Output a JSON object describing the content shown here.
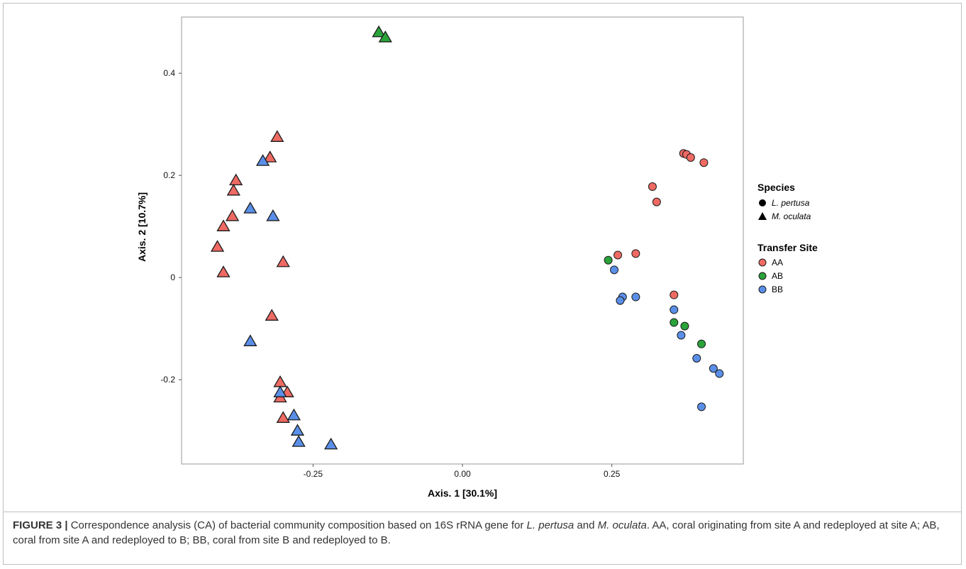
{
  "caption": {
    "label": "FIGURE 3 |",
    "part1": " Correspondence analysis (CA) of bacterial community composition based on 16S rRNA gene for ",
    "species1": "L. pertusa",
    "part2": " and ",
    "species2": "M. oculata",
    "part3": ". AA, coral originating from site A and redeployed at site A; AB, coral from site A and redeployed to B; BB, coral from site B and redeployed to B."
  },
  "chart_data": {
    "type": "scatter",
    "title": "",
    "xlabel": "Axis. 1 [30.1%]",
    "ylabel": "Axis. 2 [10.7%]",
    "xlim": [
      -0.47,
      0.47
    ],
    "ylim": [
      -0.365,
      0.51
    ],
    "x_ticks": [
      -0.25,
      0.0,
      0.25
    ],
    "x_tick_labels": [
      "-0.25",
      "0.00",
      "0.25"
    ],
    "y_ticks": [
      0.4,
      0.2,
      0.0,
      -0.2
    ],
    "y_tick_labels": [
      "0.4",
      "0.2",
      "0",
      "-0.2"
    ],
    "grid": false,
    "legend_position": "right",
    "colors": {
      "AA": "#ee6a63",
      "AB": "#2aa33a",
      "BB": "#5a8fe8"
    },
    "legend": {
      "shape_title": "Species",
      "shapes": [
        {
          "label": "L. pertusa",
          "shape": "circle"
        },
        {
          "label": "M. oculata",
          "shape": "triangle"
        }
      ],
      "color_title": "Transfer Site",
      "colors": [
        {
          "label": "AA",
          "group": "AA"
        },
        {
          "label": "AB",
          "group": "AB"
        },
        {
          "label": "BB",
          "group": "BB"
        }
      ]
    },
    "points": [
      {
        "x": 0.37,
        "y": 0.243,
        "site": "AA",
        "species": "L. pertusa"
      },
      {
        "x": 0.375,
        "y": 0.241,
        "site": "AA",
        "species": "L. pertusa"
      },
      {
        "x": 0.382,
        "y": 0.235,
        "site": "AA",
        "species": "L. pertusa"
      },
      {
        "x": 0.404,
        "y": 0.225,
        "site": "AA",
        "species": "L. pertusa"
      },
      {
        "x": 0.318,
        "y": 0.178,
        "site": "AA",
        "species": "L. pertusa"
      },
      {
        "x": 0.325,
        "y": 0.148,
        "site": "AA",
        "species": "L. pertusa"
      },
      {
        "x": 0.26,
        "y": 0.044,
        "site": "AA",
        "species": "L. pertusa"
      },
      {
        "x": 0.29,
        "y": 0.047,
        "site": "AA",
        "species": "L. pertusa"
      },
      {
        "x": 0.354,
        "y": -0.034,
        "site": "AA",
        "species": "L. pertusa"
      },
      {
        "x": 0.244,
        "y": 0.034,
        "site": "AB",
        "species": "L. pertusa"
      },
      {
        "x": 0.354,
        "y": -0.088,
        "site": "AB",
        "species": "L. pertusa"
      },
      {
        "x": 0.372,
        "y": -0.095,
        "site": "AB",
        "species": "L. pertusa"
      },
      {
        "x": 0.4,
        "y": -0.13,
        "site": "AB",
        "species": "L. pertusa"
      },
      {
        "x": 0.254,
        "y": 0.015,
        "site": "BB",
        "species": "L. pertusa"
      },
      {
        "x": 0.268,
        "y": -0.038,
        "site": "BB",
        "species": "L. pertusa"
      },
      {
        "x": 0.264,
        "y": -0.045,
        "site": "BB",
        "species": "L. pertusa"
      },
      {
        "x": 0.29,
        "y": -0.038,
        "site": "BB",
        "species": "L. pertusa"
      },
      {
        "x": 0.354,
        "y": -0.063,
        "site": "BB",
        "species": "L. pertusa"
      },
      {
        "x": 0.366,
        "y": -0.113,
        "site": "BB",
        "species": "L. pertusa"
      },
      {
        "x": 0.392,
        "y": -0.158,
        "site": "BB",
        "species": "L. pertusa"
      },
      {
        "x": 0.42,
        "y": -0.178,
        "site": "BB",
        "species": "L. pertusa"
      },
      {
        "x": 0.43,
        "y": -0.188,
        "site": "BB",
        "species": "L. pertusa"
      },
      {
        "x": 0.4,
        "y": -0.253,
        "site": "BB",
        "species": "L. pertusa"
      },
      {
        "x": -0.31,
        "y": 0.275,
        "site": "AA",
        "species": "M. oculata"
      },
      {
        "x": -0.322,
        "y": 0.235,
        "site": "AA",
        "species": "M. oculata"
      },
      {
        "x": -0.379,
        "y": 0.19,
        "site": "AA",
        "species": "M. oculata"
      },
      {
        "x": -0.383,
        "y": 0.17,
        "site": "AA",
        "species": "M. oculata"
      },
      {
        "x": -0.385,
        "y": 0.12,
        "site": "AA",
        "species": "M. oculata"
      },
      {
        "x": -0.4,
        "y": 0.1,
        "site": "AA",
        "species": "M. oculata"
      },
      {
        "x": -0.41,
        "y": 0.06,
        "site": "AA",
        "species": "M. oculata"
      },
      {
        "x": -0.4,
        "y": 0.01,
        "site": "AA",
        "species": "M. oculata"
      },
      {
        "x": -0.3,
        "y": 0.03,
        "site": "AA",
        "species": "M. oculata"
      },
      {
        "x": -0.319,
        "y": -0.075,
        "site": "AA",
        "species": "M. oculata"
      },
      {
        "x": -0.305,
        "y": -0.205,
        "site": "AA",
        "species": "M. oculata"
      },
      {
        "x": -0.293,
        "y": -0.225,
        "site": "AA",
        "species": "M. oculata"
      },
      {
        "x": -0.305,
        "y": -0.235,
        "site": "AA",
        "species": "M. oculata"
      },
      {
        "x": -0.3,
        "y": -0.275,
        "site": "AA",
        "species": "M. oculata"
      },
      {
        "x": -0.14,
        "y": 0.48,
        "site": "AB",
        "species": "M. oculata"
      },
      {
        "x": -0.129,
        "y": 0.47,
        "site": "AB",
        "species": "M. oculata"
      },
      {
        "x": -0.334,
        "y": 0.228,
        "site": "BB",
        "species": "M. oculata"
      },
      {
        "x": -0.355,
        "y": 0.135,
        "site": "BB",
        "species": "M. oculata"
      },
      {
        "x": -0.317,
        "y": 0.12,
        "site": "BB",
        "species": "M. oculata"
      },
      {
        "x": -0.355,
        "y": -0.125,
        "site": "BB",
        "species": "M. oculata"
      },
      {
        "x": -0.305,
        "y": -0.225,
        "site": "BB",
        "species": "M. oculata"
      },
      {
        "x": -0.282,
        "y": -0.27,
        "site": "BB",
        "species": "M. oculata"
      },
      {
        "x": -0.276,
        "y": -0.3,
        "site": "BB",
        "species": "M. oculata"
      },
      {
        "x": -0.274,
        "y": -0.322,
        "site": "BB",
        "species": "M. oculata"
      },
      {
        "x": -0.22,
        "y": -0.327,
        "site": "BB",
        "species": "M. oculata"
      }
    ]
  }
}
